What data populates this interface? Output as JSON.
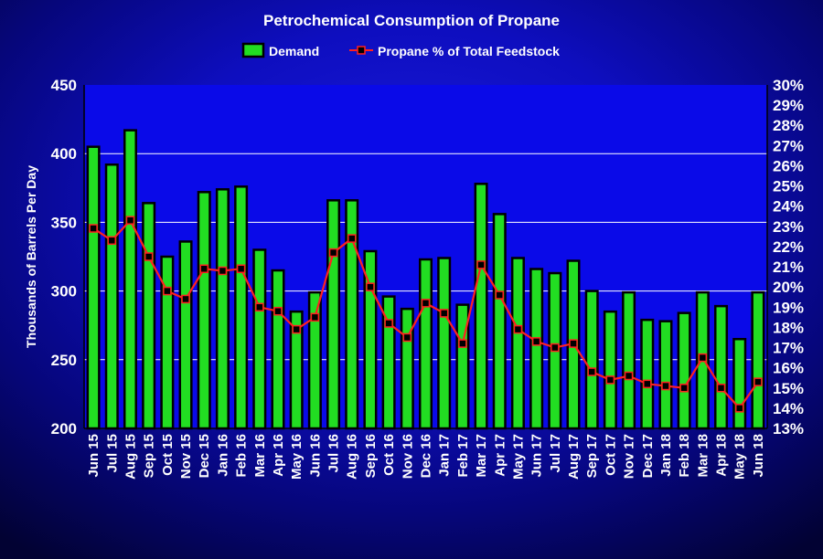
{
  "chart_data": {
    "type": "bar",
    "title": "Petrochemical Consumption of Propane",
    "ylabel": "Thousands of Barrels Per Day",
    "ylim": [
      200,
      450
    ],
    "y_ticks": [
      "200",
      "250",
      "300",
      "350",
      "400",
      "450"
    ],
    "y2lim": [
      13,
      30
    ],
    "y2_ticks": [
      "13%",
      "14%",
      "15%",
      "16%",
      "17%",
      "18%",
      "19%",
      "20%",
      "21%",
      "22%",
      "23%",
      "24%",
      "25%",
      "26%",
      "27%",
      "28%",
      "29%",
      "30%"
    ],
    "categories": [
      "Jun 15",
      "Jul 15",
      "Aug 15",
      "Sep 15",
      "Oct 15",
      "Nov 15",
      "Dec 15",
      "Jan 16",
      "Feb 16",
      "Mar 16",
      "Apr 16",
      "May 16",
      "Jun 16",
      "Jul 16",
      "Aug 16",
      "Sep 16",
      "Oct 16",
      "Nov 16",
      "Dec 16",
      "Jan 17",
      "Feb 17",
      "Mar 17",
      "Apr 17",
      "May 17",
      "Jun 17",
      "Jul 17",
      "Aug 17",
      "Sep 17",
      "Oct 17",
      "Nov 17",
      "Dec 17",
      "Jan 18",
      "Feb 18",
      "Mar 18",
      "Apr 18",
      "May 18",
      "Jun 18"
    ],
    "legend_placement": "top-center",
    "grid": true,
    "series": [
      {
        "name": "Demand",
        "type": "bar",
        "axis": "left",
        "color": "#22dd22",
        "values": [
          405,
          392,
          417,
          364,
          325,
          336,
          372,
          374,
          376,
          330,
          315,
          285,
          299,
          366,
          366,
          329,
          296,
          287,
          323,
          324,
          290,
          378,
          356,
          324,
          316,
          313,
          322,
          300,
          285,
          299,
          279,
          278,
          284,
          299,
          289,
          265,
          299
        ]
      },
      {
        "name": "Propane % of Total Feedstock",
        "type": "line",
        "axis": "right",
        "unit": "%",
        "color": "#ff2020",
        "values": [
          22.9,
          22.3,
          23.3,
          21.5,
          19.8,
          19.4,
          20.9,
          20.8,
          20.9,
          19.0,
          18.8,
          17.9,
          18.5,
          21.7,
          22.4,
          20.0,
          18.2,
          17.5,
          19.2,
          18.7,
          17.2,
          21.1,
          19.6,
          17.9,
          17.3,
          17.0,
          17.2,
          15.8,
          15.4,
          15.6,
          15.2,
          15.1,
          15.0,
          16.5,
          15.0,
          14.0,
          15.3
        ]
      }
    ]
  }
}
